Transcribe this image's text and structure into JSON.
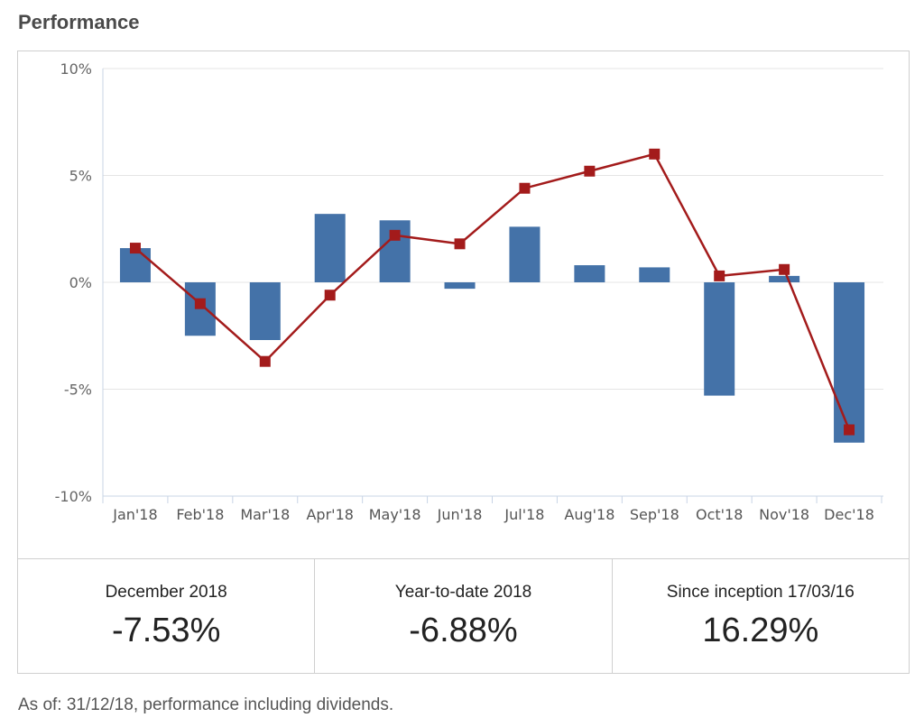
{
  "page_title": "Performance",
  "chart_data": {
    "type": "bar",
    "categories": [
      "Jan'18",
      "Feb'18",
      "Mar'18",
      "Apr'18",
      "May'18",
      "Jun'18",
      "Jul'18",
      "Aug'18",
      "Sep'18",
      "Oct'18",
      "Nov'18",
      "Dec'18"
    ],
    "series": [
      {
        "type": "bar",
        "color": "#4472a8",
        "values": [
          1.6,
          -2.5,
          -2.7,
          3.2,
          2.9,
          -0.3,
          2.6,
          0.8,
          0.7,
          -5.3,
          0.3,
          -7.5
        ]
      },
      {
        "type": "line",
        "color": "#a31b1b",
        "values": [
          1.6,
          -1.0,
          -3.7,
          -0.6,
          2.2,
          1.8,
          4.4,
          5.2,
          6.0,
          0.3,
          0.6,
          -6.9
        ]
      }
    ],
    "y_ticks": [
      "10%",
      "5%",
      "0%",
      "-5%",
      "-10%"
    ],
    "y_tick_values": [
      10,
      5,
      0,
      -5,
      -10
    ],
    "ylim": [
      -10,
      10
    ],
    "grid": true
  },
  "stats": [
    {
      "label": "December 2018",
      "value": "-7.53%"
    },
    {
      "label": "Year-to-date 2018",
      "value": "-6.88%"
    },
    {
      "label": "Since inception 17/03/16",
      "value": "16.29%"
    }
  ],
  "footnote": "As of: 31/12/18, performance including dividends."
}
